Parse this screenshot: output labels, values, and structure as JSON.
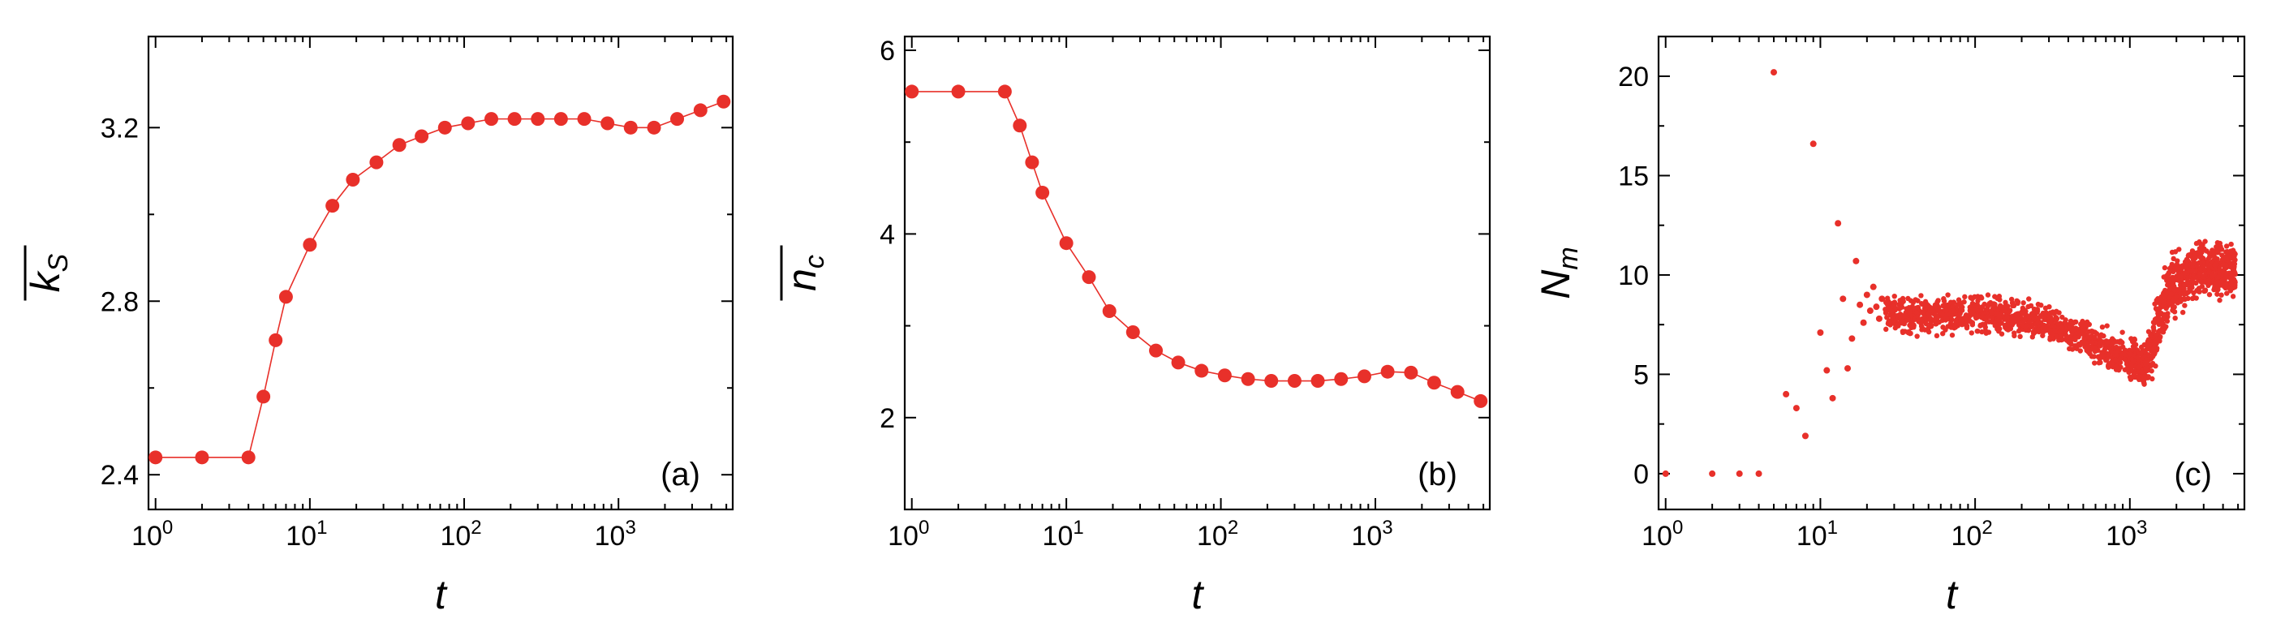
{
  "colors": {
    "series": "#e8302a",
    "axis": "#000000"
  },
  "chart_data": [
    {
      "id": "a",
      "type": "line",
      "panel_label": "(a)",
      "xlabel": "t",
      "ylabel": "k",
      "ylabel_subscript": "S",
      "ylabel_overbar": true,
      "xscale": "log",
      "xlim": [
        0.9,
        5500
      ],
      "ylim": [
        2.32,
        3.41
      ],
      "xticks": [
        {
          "value": 1,
          "base": "10",
          "exp": "0"
        },
        {
          "value": 10,
          "base": "10",
          "exp": "1"
        },
        {
          "value": 100,
          "base": "10",
          "exp": "2"
        },
        {
          "value": 1000,
          "base": "10",
          "exp": "3"
        }
      ],
      "yticks": [
        {
          "value": 2.4,
          "label": "2.4"
        },
        {
          "value": 2.8,
          "label": "2.8"
        },
        {
          "value": 3.2,
          "label": "3.2"
        }
      ],
      "markers": "filled-circle",
      "line": true,
      "x": [
        1,
        2,
        4,
        5,
        6,
        7,
        10,
        14,
        19,
        27,
        38,
        53,
        75,
        106,
        150,
        212,
        300,
        424,
        600,
        849,
        1200,
        1700,
        2400,
        3400,
        4800
      ],
      "y": [
        2.44,
        2.44,
        2.44,
        2.58,
        2.71,
        2.81,
        2.93,
        3.02,
        3.08,
        3.12,
        3.16,
        3.18,
        3.2,
        3.21,
        3.22,
        3.22,
        3.22,
        3.22,
        3.22,
        3.21,
        3.2,
        3.2,
        3.22,
        3.24,
        3.26
      ]
    },
    {
      "id": "b",
      "type": "line",
      "panel_label": "(b)",
      "xlabel": "t",
      "ylabel": "n",
      "ylabel_subscript": "c",
      "ylabel_overbar": true,
      "xscale": "log",
      "xlim": [
        0.9,
        5500
      ],
      "ylim": [
        1.0,
        6.15
      ],
      "xticks": [
        {
          "value": 1,
          "base": "10",
          "exp": "0"
        },
        {
          "value": 10,
          "base": "10",
          "exp": "1"
        },
        {
          "value": 100,
          "base": "10",
          "exp": "2"
        },
        {
          "value": 1000,
          "base": "10",
          "exp": "3"
        }
      ],
      "yticks": [
        {
          "value": 2,
          "label": "2"
        },
        {
          "value": 4,
          "label": "4"
        },
        {
          "value": 6,
          "label": "6"
        }
      ],
      "markers": "filled-circle",
      "line": true,
      "x": [
        1,
        2,
        4,
        5,
        6,
        7,
        10,
        14,
        19,
        27,
        38,
        53,
        75,
        106,
        150,
        212,
        300,
        424,
        600,
        849,
        1200,
        1700,
        2400,
        3400,
        4800
      ],
      "y": [
        5.55,
        5.55,
        5.55,
        5.18,
        4.78,
        4.45,
        3.9,
        3.53,
        3.16,
        2.93,
        2.73,
        2.6,
        2.51,
        2.46,
        2.42,
        2.4,
        2.4,
        2.4,
        2.42,
        2.45,
        2.5,
        2.49,
        2.38,
        2.28,
        2.18
      ]
    },
    {
      "id": "c",
      "type": "scatter",
      "panel_label": "(c)",
      "xlabel": "t",
      "ylabel": "N",
      "ylabel_subscript": "m",
      "ylabel_overbar": false,
      "xscale": "log",
      "xlim": [
        0.9,
        5500
      ],
      "ylim": [
        -1.8,
        22
      ],
      "xticks": [
        {
          "value": 1,
          "base": "10",
          "exp": "0"
        },
        {
          "value": 10,
          "base": "10",
          "exp": "1"
        },
        {
          "value": 100,
          "base": "10",
          "exp": "2"
        },
        {
          "value": 1000,
          "base": "10",
          "exp": "3"
        }
      ],
      "yticks": [
        {
          "value": 0,
          "label": "0"
        },
        {
          "value": 5,
          "label": "5"
        },
        {
          "value": 10,
          "label": "10"
        },
        {
          "value": 15,
          "label": "15"
        },
        {
          "value": 20,
          "label": "20"
        }
      ],
      "markers": "small-dot",
      "line": false,
      "x": [
        1,
        2,
        3,
        4,
        5,
        6,
        7,
        8,
        9,
        10,
        11,
        12,
        13,
        14,
        15,
        16,
        17,
        18,
        19,
        20,
        21,
        22,
        23,
        24,
        25
      ],
      "y": [
        0,
        0,
        0,
        0,
        20.2,
        4,
        3.3,
        1.9,
        16.6,
        7.1,
        5.2,
        3.8,
        12.6,
        8.8,
        5.3,
        6.8,
        10.7,
        8.5,
        7.6,
        9.0,
        8.2,
        9.4,
        8.4,
        7.8,
        8.8
      ],
      "dense_band": [
        [
          26,
          8.1,
          0.6
        ],
        [
          32,
          8.0,
          0.7
        ],
        [
          40,
          7.9,
          0.7
        ],
        [
          50,
          8.0,
          0.7
        ],
        [
          63,
          8.0,
          0.7
        ],
        [
          79,
          8.1,
          0.7
        ],
        [
          100,
          8.1,
          0.7
        ],
        [
          126,
          8.0,
          0.7
        ],
        [
          158,
          7.9,
          0.7
        ],
        [
          200,
          7.8,
          0.7
        ],
        [
          251,
          7.6,
          0.7
        ],
        [
          316,
          7.4,
          0.7
        ],
        [
          398,
          7.1,
          0.7
        ],
        [
          501,
          6.8,
          0.7
        ],
        [
          631,
          6.4,
          0.8
        ],
        [
          794,
          6.0,
          0.8
        ],
        [
          1000,
          5.8,
          0.8
        ],
        [
          1122,
          5.6,
          0.8
        ],
        [
          1259,
          5.5,
          0.9
        ],
        [
          1413,
          6.5,
          1.3
        ],
        [
          1585,
          8.0,
          1.4
        ],
        [
          1778,
          9.1,
          1.3
        ],
        [
          1995,
          9.6,
          1.2
        ],
        [
          2239,
          9.9,
          1.1
        ],
        [
          2512,
          10.1,
          1.0
        ],
        [
          2818,
          10.2,
          1.0
        ],
        [
          3162,
          10.3,
          1.0
        ],
        [
          3548,
          10.3,
          1.0
        ],
        [
          3981,
          10.3,
          1.0
        ],
        [
          4467,
          10.3,
          1.0
        ],
        [
          4800,
          10.3,
          1.0
        ]
      ]
    }
  ]
}
